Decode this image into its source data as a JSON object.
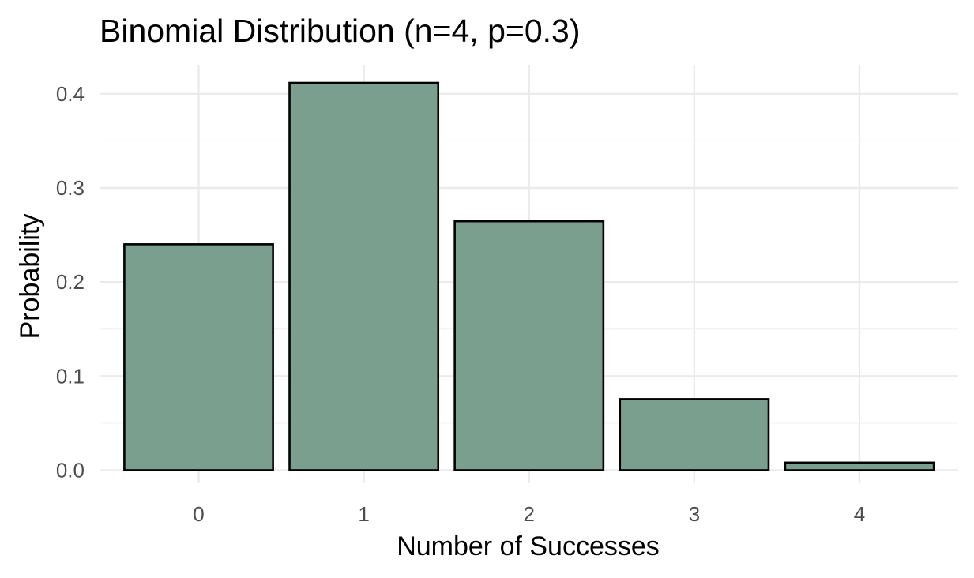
{
  "chart_data": {
    "type": "bar",
    "title": "Binomial Distribution (n=4, p=0.3)",
    "xlabel": "Number of Successes",
    "ylabel": "Probability",
    "categories": [
      "0",
      "1",
      "2",
      "3",
      "4"
    ],
    "values": [
      0.2401,
      0.4116,
      0.2646,
      0.0756,
      0.0081
    ],
    "ylim": [
      0,
      0.4116
    ],
    "yticks": [
      "0.0",
      "0.1",
      "0.2",
      "0.3",
      "0.4"
    ],
    "ytick_values": [
      0,
      0.1,
      0.2,
      0.3,
      0.4
    ],
    "grid": true,
    "legend": "none",
    "colors": {
      "bar_fill": "#7a9f8f",
      "bar_stroke": "#000000",
      "grid_major": "#ebebeb",
      "grid_minor": "#f3f3f3",
      "tick_text": "#4d4d4d",
      "title_text": "#000000"
    }
  }
}
